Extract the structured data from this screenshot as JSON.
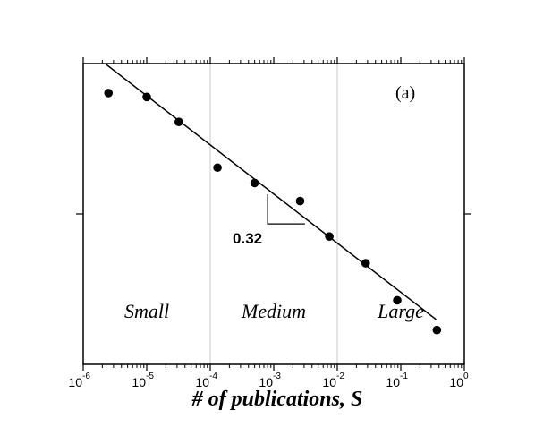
{
  "chart_data": {
    "type": "scatter",
    "xlabel": "# of publications, S",
    "ylabel": "",
    "x_scale": "log",
    "xlim": [
      1e-06,
      1
    ],
    "x_ticks": [
      {
        "base": "10",
        "exp": "-6"
      },
      {
        "base": "10",
        "exp": "-5"
      },
      {
        "base": "10",
        "exp": "-4"
      },
      {
        "base": "10",
        "exp": "-3"
      },
      {
        "base": "10",
        "exp": "-2"
      },
      {
        "base": "10",
        "exp": "-1"
      },
      {
        "base": "10",
        "exp": "0"
      }
    ],
    "y_ticks": [],
    "panel_label": "(a)",
    "regions": [
      {
        "label": "Small",
        "x_range": [
          1e-06,
          0.0001
        ]
      },
      {
        "label": "Medium",
        "x_range": [
          0.0001,
          0.01
        ]
      },
      {
        "label": "Large",
        "x_range": [
          0.01,
          1
        ]
      }
    ],
    "points": [
      {
        "x": 2.5e-06,
        "y": 0.902
      },
      {
        "x": 1e-05,
        "y": 0.889
      },
      {
        "x": 3.2e-05,
        "y": 0.806
      },
      {
        "x": 0.00013,
        "y": 0.654
      },
      {
        "x": 0.0005,
        "y": 0.603
      },
      {
        "x": 0.0026,
        "y": 0.543
      },
      {
        "x": 0.0075,
        "y": 0.425
      },
      {
        "x": 0.028,
        "y": 0.336
      },
      {
        "x": 0.088,
        "y": 0.213
      },
      {
        "x": 0.37,
        "y": 0.114
      }
    ],
    "fit_line": {
      "x": [
        2.3e-06,
        0.36
      ],
      "y": [
        0.997,
        0.149
      ]
    },
    "slope_annotation": {
      "label": "0.32",
      "x": [
        0.0008,
        0.0031
      ],
      "y": [
        0.565,
        0.467
      ]
    },
    "grid": "vertical lines at region boundaries"
  }
}
